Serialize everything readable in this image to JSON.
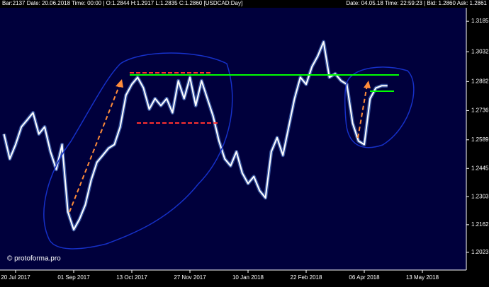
{
  "chart_data": {
    "type": "line",
    "info_left": "Bar:2137 Date: 20.06.2018 Time: 00:00 | O:1.2844 H:1.2917 L:1.2835 C:1.2860 [USDCAD:Day]",
    "info_right": "Date: 04.05.18 Time: 22:59:23 | Bid: 1.2860 Ask: 1.2861",
    "watermark": "© protoforma.pro",
    "categories": [
      null,
      null,
      "20 Jul 2017",
      null,
      null,
      null,
      null,
      null,
      null,
      null,
      null,
      null,
      "01 Sep 2017",
      null,
      null,
      null,
      null,
      null,
      null,
      null,
      null,
      null,
      "13 Oct 2017",
      null,
      null,
      null,
      null,
      null,
      null,
      null,
      null,
      null,
      "27 Nov 2017",
      null,
      null,
      null,
      null,
      null,
      null,
      null,
      null,
      null,
      "10 Jan 2018",
      null,
      null,
      null,
      null,
      null,
      null,
      null,
      null,
      null,
      "22 Feb 2018",
      null,
      null,
      null,
      null,
      null,
      null,
      null,
      null,
      null,
      "06 Apr 2018",
      null,
      null,
      null,
      null,
      null,
      null,
      null,
      null,
      null,
      "13 May 2018"
    ],
    "series": [
      {
        "name": "USDCAD",
        "color": "#ffffff",
        "values": [
          1.2618,
          1.2493,
          1.2565,
          1.2654,
          1.2689,
          1.2725,
          1.2618,
          1.2654,
          1.2529,
          1.244,
          1.2565,
          1.2226,
          1.2137,
          1.219,
          1.2262,
          1.2386,
          1.2476,
          1.2511,
          1.2547,
          1.2565,
          1.2654,
          1.2814,
          1.2868,
          1.2903,
          1.285,
          1.2743,
          1.2796,
          1.2761,
          1.2796,
          1.2725,
          1.2886,
          1.2796,
          1.2903,
          1.2761,
          1.2886,
          1.2796,
          1.2707,
          1.2583,
          1.2493,
          1.2458,
          1.2529,
          1.2422,
          1.2369,
          1.2404,
          1.2333,
          1.2297,
          1.2529,
          1.26,
          1.2511,
          1.2654,
          1.2796,
          1.2903,
          1.2868,
          1.2957,
          1.301,
          1.3082,
          1.2903,
          1.2921,
          1.2886,
          1.2868,
          1.2672,
          1.2583,
          1.2565,
          1.2796,
          1.285,
          1.2861,
          1.2861,
          null,
          null,
          null,
          null,
          null,
          null
        ]
      }
    ],
    "ylim": [
      1.1934,
      1.3253
    ],
    "yticks": [
      1.3185,
      1.3032,
      1.2882,
      1.2736,
      1.2589,
      1.2445,
      1.2303,
      1.2162,
      1.2023
    ],
    "background": "#00003c"
  }
}
